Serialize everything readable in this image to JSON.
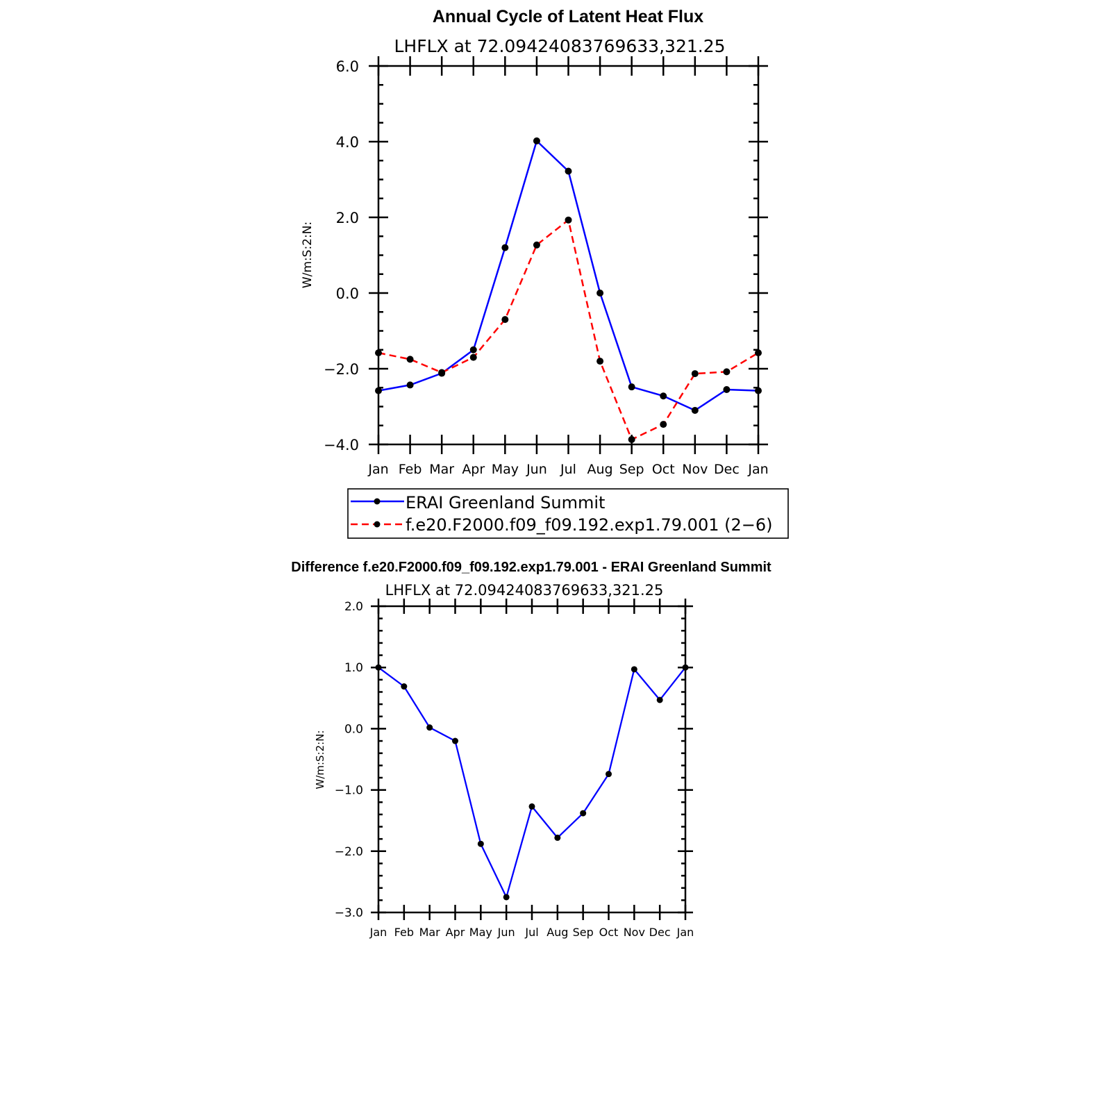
{
  "chart_data": [
    {
      "type": "line",
      "title": "Annual Cycle of Latent Heat Flux",
      "subtitle": "LHFLX at 72.09424083769633,321.25",
      "ylabel": "W/m:S:2:N:",
      "xlabel": "",
      "categories": [
        "Jan",
        "Feb",
        "Mar",
        "Apr",
        "May",
        "Jun",
        "Jul",
        "Aug",
        "Sep",
        "Oct",
        "Nov",
        "Dec",
        "Jan"
      ],
      "ylim": [
        -4.0,
        6.0
      ],
      "yticks": [
        "-4.0",
        "-2.0",
        "0.0",
        "2.0",
        "4.0",
        "6.0"
      ],
      "legend_position": "below",
      "series": [
        {
          "name": "ERAI Greenland Summit",
          "color": "#0000ff",
          "dash": "solid",
          "marker": "dot",
          "values": [
            -2.58,
            -2.43,
            -2.12,
            -1.5,
            1.2,
            4.02,
            3.22,
            0.0,
            -2.48,
            -2.72,
            -3.1,
            -2.55,
            -2.58
          ]
        },
        {
          "name": "f.e20.F2000.f09_f09.192.exp1.79.001 (2−6)",
          "color": "#ff0000",
          "dash": "dashed",
          "marker": "dot",
          "values": [
            -1.58,
            -1.75,
            -2.1,
            -1.7,
            -0.7,
            1.27,
            1.93,
            -1.8,
            -3.87,
            -3.47,
            -2.13,
            -2.08,
            -1.58
          ]
        }
      ]
    },
    {
      "type": "line",
      "title": "Difference f.e20.F2000.f09_f09.192.exp1.79.001 - ERAI Greenland Summit",
      "subtitle": "LHFLX at 72.09424083769633,321.25",
      "ylabel": "W/m:S:2:N:",
      "xlabel": "",
      "categories": [
        "Jan",
        "Feb",
        "Mar",
        "Apr",
        "May",
        "Jun",
        "Jul",
        "Aug",
        "Sep",
        "Oct",
        "Nov",
        "Dec",
        "Jan"
      ],
      "ylim": [
        -3.0,
        2.0
      ],
      "yticks": [
        "-3.0",
        "-2.0",
        "-1.0",
        "0.0",
        "1.0",
        "2.0"
      ],
      "series": [
        {
          "color": "#0000ff",
          "dash": "solid",
          "marker": "dot",
          "values": [
            1.0,
            0.69,
            0.02,
            -0.2,
            -1.88,
            -2.75,
            -1.27,
            -1.78,
            -1.38,
            -0.74,
            0.97,
            0.47,
            1.0
          ]
        }
      ]
    }
  ]
}
